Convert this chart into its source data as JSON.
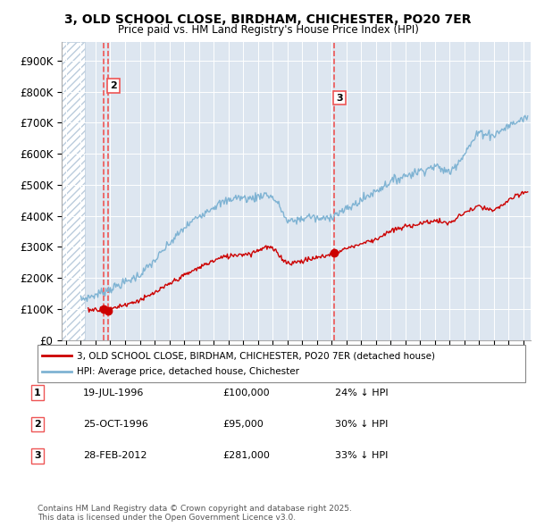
{
  "title": "3, OLD SCHOOL CLOSE, BIRDHAM, CHICHESTER, PO20 7ER",
  "subtitle": "Price paid vs. HM Land Registry's House Price Index (HPI)",
  "ylabel_ticks": [
    "£0",
    "£100K",
    "£200K",
    "£300K",
    "£400K",
    "£500K",
    "£600K",
    "£700K",
    "£800K",
    "£900K"
  ],
  "ytick_values": [
    0,
    100000,
    200000,
    300000,
    400000,
    500000,
    600000,
    700000,
    800000,
    900000
  ],
  "ylim": [
    0,
    960000
  ],
  "xlim_start": 1993.7,
  "xlim_end": 2025.5,
  "background_color": "#dde6f0",
  "hatch_end_year": 1995.3,
  "grid_color": "#ffffff",
  "red_line_color": "#cc0000",
  "blue_line_color": "#7fb3d3",
  "dashed_line_color": "#ee5555",
  "legend_label_red": "3, OLD SCHOOL CLOSE, BIRDHAM, CHICHESTER, PO20 7ER (detached house)",
  "legend_label_blue": "HPI: Average price, detached house, Chichester",
  "sale1_date": 1996.54,
  "sale1_price": 100000,
  "sale2_date": 1996.82,
  "sale2_price": 95000,
  "sale3_date": 2012.16,
  "sale3_price": 281000,
  "table_rows": [
    [
      "1",
      "19-JUL-1996",
      "£100,000",
      "24% ↓ HPI"
    ],
    [
      "2",
      "25-OCT-1996",
      "£95,000",
      "30% ↓ HPI"
    ],
    [
      "3",
      "28-FEB-2012",
      "£281,000",
      "33% ↓ HPI"
    ]
  ],
  "footer": "Contains HM Land Registry data © Crown copyright and database right 2025.\nThis data is licensed under the Open Government Licence v3.0."
}
